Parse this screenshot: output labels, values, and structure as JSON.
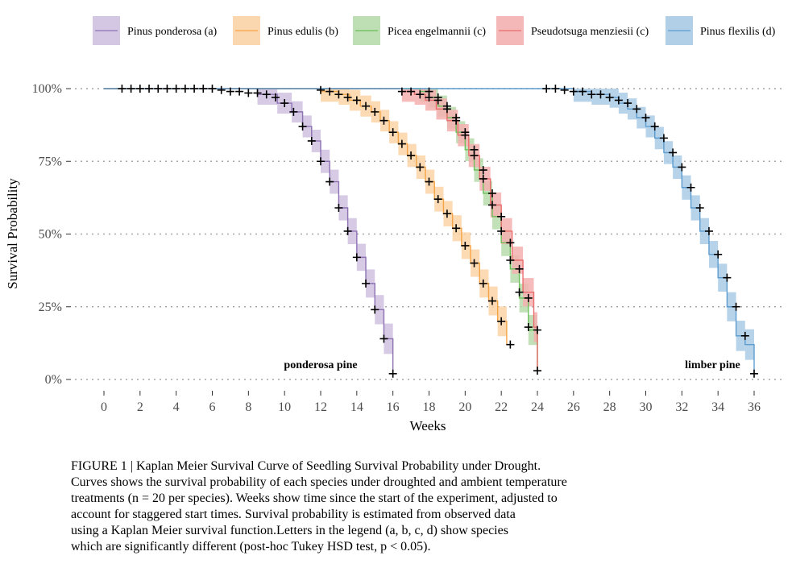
{
  "chart_data": {
    "type": "line",
    "title": "",
    "xlabel": "Weeks",
    "ylabel": "Survival Probability",
    "xlim": [
      0,
      36
    ],
    "ylim": [
      0,
      1
    ],
    "x_ticks": [
      "0",
      "2",
      "4",
      "6",
      "8",
      "10",
      "12",
      "14",
      "16",
      "18",
      "20",
      "22",
      "24",
      "26",
      "28",
      "30",
      "32",
      "34",
      "36"
    ],
    "y_ticks": [
      "0%",
      "25%",
      "50%",
      "75%",
      "100%"
    ],
    "grid": "horizontal dotted",
    "legend_position": "top",
    "series": [
      {
        "name": "Pinus ponderosa (a)",
        "color": "#8e72b4",
        "fill": "#cfc1e0",
        "times": [
          8.5,
          9.6,
          10.4,
          11.0,
          11.5,
          12.0,
          12.5,
          13.0,
          13.5,
          14.0,
          14.5,
          15.0,
          15.5,
          16.0
        ],
        "survival": [
          0.98,
          0.95,
          0.92,
          0.87,
          0.82,
          0.75,
          0.68,
          0.59,
          0.51,
          0.42,
          0.33,
          0.24,
          0.14,
          0.02
        ],
        "censor_x": [
          1,
          1.5,
          2,
          2.5,
          3,
          3.5,
          4,
          4.5,
          5,
          5.5,
          6,
          6.5,
          7,
          7.5,
          8,
          8.5,
          9,
          9.5,
          10,
          10.5,
          11,
          11.5,
          12,
          12.5,
          13,
          13.5,
          14,
          14.5,
          15,
          15.5,
          16
        ],
        "censor_y": [
          1,
          1,
          1,
          1,
          1,
          1,
          1,
          1,
          1,
          1,
          1,
          0.995,
          0.99,
          0.99,
          0.985,
          0.985,
          0.98,
          0.97,
          0.95,
          0.92,
          0.87,
          0.82,
          0.75,
          0.68,
          0.59,
          0.51,
          0.42,
          0.33,
          0.24,
          0.14,
          0.02
        ]
      },
      {
        "name": "Pinus edulis (b)",
        "color": "#f5a445",
        "fill": "#fbd3a6",
        "times": [
          12.0,
          13.0,
          13.6,
          14.2,
          14.8,
          15.3,
          15.8,
          16.3,
          16.8,
          17.3,
          17.8,
          18.3,
          18.8,
          19.3,
          19.8,
          20.3,
          20.8,
          21.3,
          21.8,
          22.3
        ],
        "survival": [
          0.99,
          0.98,
          0.96,
          0.94,
          0.92,
          0.89,
          0.85,
          0.81,
          0.77,
          0.73,
          0.68,
          0.62,
          0.57,
          0.52,
          0.46,
          0.4,
          0.33,
          0.27,
          0.2,
          0.12
        ],
        "censor_x": [
          12,
          12.5,
          13,
          13.5,
          14,
          14.5,
          15,
          15.5,
          16,
          16.5,
          17,
          17.5,
          18,
          18.5,
          19,
          19.5,
          20,
          20.5,
          21,
          21.5,
          22,
          22.5
        ],
        "censor_y": [
          0.995,
          0.99,
          0.98,
          0.97,
          0.96,
          0.94,
          0.92,
          0.89,
          0.85,
          0.81,
          0.77,
          0.73,
          0.68,
          0.62,
          0.57,
          0.52,
          0.46,
          0.4,
          0.33,
          0.27,
          0.2,
          0.12
        ]
      },
      {
        "name": "Picea engelmannii (c)",
        "color": "#6cbf5a",
        "fill": "#b7dcab",
        "times": [
          17.5,
          18.0,
          18.5,
          19.0,
          19.5,
          20.0,
          20.5,
          21.0,
          21.5,
          22.0,
          22.5,
          23.0,
          23.5,
          24.0
        ],
        "survival": [
          0.99,
          0.97,
          0.94,
          0.9,
          0.85,
          0.79,
          0.72,
          0.64,
          0.56,
          0.47,
          0.38,
          0.28,
          0.17,
          0.03
        ],
        "censor_x": [
          18,
          18.5,
          19,
          19.5,
          20,
          20.5,
          21,
          21.5,
          22,
          22.5,
          23,
          23.5,
          24
        ],
        "censor_y": [
          0.99,
          0.97,
          0.94,
          0.9,
          0.85,
          0.79,
          0.72,
          0.64,
          0.56,
          0.47,
          0.38,
          0.28,
          0.17
        ]
      },
      {
        "name": "Pseudotsuga menziesii (c)",
        "color": "#ea6d6d",
        "fill": "#f4b0b0",
        "times": [
          16.5,
          17.2,
          17.8,
          18.4,
          19.0,
          19.6,
          20.2,
          20.8,
          21.4,
          22.0,
          22.6,
          23.2,
          23.8,
          24.0
        ],
        "survival": [
          0.99,
          0.98,
          0.96,
          0.93,
          0.89,
          0.84,
          0.77,
          0.69,
          0.6,
          0.51,
          0.41,
          0.3,
          0.18,
          0.03
        ],
        "censor_x": [
          16.5,
          17,
          17.5,
          18,
          18.5,
          19,
          19.5,
          20,
          20.5,
          21,
          21.5,
          22,
          22.5,
          23,
          23.5,
          24
        ],
        "censor_y": [
          0.99,
          0.99,
          0.98,
          0.97,
          0.96,
          0.93,
          0.89,
          0.84,
          0.77,
          0.69,
          0.6,
          0.51,
          0.41,
          0.3,
          0.18,
          0.03
        ]
      },
      {
        "name": "Pinus flexilis (d)",
        "color": "#5d9ccf",
        "fill": "#a9cbe6",
        "times": [
          26.0,
          27.0,
          28.0,
          28.5,
          29.0,
          29.5,
          30.0,
          30.5,
          31.0,
          31.5,
          32.0,
          32.5,
          33.0,
          33.5,
          34.0,
          34.5,
          35.0,
          35.5,
          36.0
        ],
        "survival": [
          0.99,
          0.98,
          0.97,
          0.95,
          0.93,
          0.9,
          0.87,
          0.83,
          0.78,
          0.73,
          0.66,
          0.59,
          0.51,
          0.43,
          0.35,
          0.25,
          0.15,
          0.12,
          0.02
        ],
        "censor_x": [
          24.5,
          25,
          25.5,
          26,
          26.5,
          27,
          27.5,
          28,
          28.5,
          29,
          29.5,
          30,
          30.5,
          31,
          31.5,
          32,
          32.5,
          33,
          33.5,
          34,
          34.5,
          35,
          35.5,
          36
        ],
        "censor_y": [
          1,
          1,
          0.995,
          0.99,
          0.99,
          0.98,
          0.98,
          0.97,
          0.96,
          0.95,
          0.93,
          0.9,
          0.87,
          0.83,
          0.78,
          0.73,
          0.66,
          0.59,
          0.51,
          0.43,
          0.35,
          0.25,
          0.15,
          0.02
        ]
      }
    ],
    "annotations": [
      {
        "text": "ponderosa pine",
        "x": 12,
        "y": 0.05
      },
      {
        "text": "limber pine",
        "x": 33.7,
        "y": 0.05
      }
    ]
  },
  "caption_lines": [
    "FIGURE 1 | Kaplan Meier Survival Curve of Seedling Survival Probability under Drought.",
    "Curves shows the survival probability of each species under droughted and ambient temperature",
    "treatments (n = 20 per species). Weeks show time since the start of the experiment, adjusted to",
    "account for staggered start times. Survival probability is estimated from observed data",
    "using a Kaplan Meier survival function.Letters in the legend (a, b, c, d) show species",
    "which are significantly different (post-hoc Tukey HSD test, p < 0.05)."
  ]
}
